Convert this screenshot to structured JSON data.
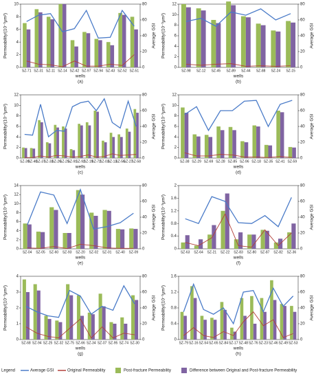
{
  "legend_title": "Legend",
  "chart_data": [
    {
      "type": "bar",
      "subtitle": "(a)",
      "x_label": "wells",
      "y_label": "Permeability/(10⁻³μm²)",
      "y2_label": "Average GSI",
      "categories": [
        "SZ-71",
        "SZ-31",
        "SZ-11",
        "SZ-14",
        "SZ-42",
        "SZ-97",
        "SZ-94",
        "SZ-43",
        "SZ-52",
        "SZ-51"
      ],
      "series": [
        {
          "name": "Average GSI",
          "type": "line",
          "axis": "y2",
          "color": "#4a7bc8",
          "values": [
            58,
            66,
            68,
            45,
            49,
            72,
            37,
            38,
            72,
            52
          ]
        },
        {
          "name": "Original Permeability",
          "type": "line",
          "color": "#b2403a",
          "values": [
            1,
            0.5,
            0.4,
            0.1,
            1,
            0.2,
            0.2,
            0.5,
            0.3,
            2
          ]
        },
        {
          "name": "Post-fracture Permeability",
          "type": "bar",
          "color": "#9bbb59",
          "values": [
            7,
            9.2,
            8,
            10,
            4.3,
            5.6,
            4.5,
            4,
            8.6,
            8
          ]
        },
        {
          "name": "Difference between Original and Post-fracture Permeability",
          "type": "bar",
          "color": "#8064a2",
          "values": [
            6,
            8.7,
            7.6,
            10,
            3.3,
            5.4,
            4.3,
            3.5,
            8.3,
            6
          ]
        }
      ],
      "ylim": [
        0,
        10
      ],
      "yticks": [
        0,
        2,
        4,
        6,
        8,
        10
      ],
      "y2lim": [
        0,
        80
      ],
      "y2ticks": [
        0,
        20,
        40,
        60,
        80
      ]
    },
    {
      "type": "bar",
      "subtitle": "(b)",
      "x_label": "wells",
      "y_label": "Permeability/(10⁻³μm²)",
      "y2_label": "Average GSI",
      "categories": [
        "SZ-98",
        "SZ-12",
        "SZ-45",
        "SZ-89",
        "SZ-44",
        "SZ-88",
        "SZ-24",
        "SZ-15"
      ],
      "series": [
        {
          "name": "Average GSI",
          "type": "line",
          "axis": "y2",
          "color": "#4a7bc8",
          "values": [
            58,
            62,
            52,
            70,
            66,
            74,
            60,
            68
          ]
        },
        {
          "name": "Original Permeability",
          "type": "line",
          "color": "#b2403a",
          "values": [
            0.6,
            0.4,
            0.6,
            0.7,
            0.2,
            0.3,
            0.2,
            0.3
          ]
        },
        {
          "name": "Post-fracture Permeability",
          "type": "bar",
          "color": "#9bbb59",
          "values": [
            12,
            11.2,
            9,
            12.5,
            9.7,
            8.3,
            7,
            8.8
          ]
        },
        {
          "name": "Difference between Original and Post-fracture Permeability",
          "type": "bar",
          "color": "#8064a2",
          "values": [
            11.4,
            10.8,
            8.4,
            11.8,
            9.5,
            8,
            6.8,
            8.5
          ]
        }
      ],
      "ylim": [
        0,
        12
      ],
      "yticks": [
        0,
        2,
        4,
        6,
        8,
        10,
        12
      ],
      "y2lim": [
        0,
        80
      ],
      "y2ticks": [
        0,
        20,
        40,
        60,
        80
      ]
    },
    {
      "type": "bar",
      "subtitle": "(c)",
      "x_label": "wells",
      "y_label": "Permeability/(10⁻³μm²)",
      "y2_label": "Average GSI",
      "categories": [
        "SZ-39",
        "SZ-40",
        "SZ-37",
        "SZ-33",
        "SZ-26",
        "SZ-25",
        "SZ-91",
        "SZ-92",
        "SZ-19",
        "SZ-72",
        "SZ-03",
        "SZ-13",
        "SZ-56",
        "SZ-27",
        "SZ-58"
      ],
      "series": [
        {
          "name": "Average GSI",
          "type": "line",
          "axis": "y2",
          "color": "#4a7bc8",
          "values": [
            30,
            29,
            68,
            27,
            35,
            34,
            65,
            70,
            72,
            60,
            75,
            45,
            38,
            72,
            40
          ]
        },
        {
          "name": "Original Permeability",
          "type": "line",
          "color": "#b2403a",
          "values": [
            0.1,
            0.1,
            0.4,
            0.2,
            0.5,
            0.4,
            0.2,
            0.3,
            0.6,
            0.2,
            0.3,
            0.8,
            0.5,
            0.6,
            0.7
          ]
        },
        {
          "name": "Post-fracture Permeability",
          "type": "bar",
          "color": "#9bbb59",
          "values": [
            2,
            1.9,
            7.2,
            3,
            6.3,
            6,
            1.7,
            6.5,
            6.8,
            9,
            3.3,
            4.8,
            4.5,
            5.6,
            9.3
          ]
        },
        {
          "name": "Difference between Original and Post-fracture Permeability",
          "type": "bar",
          "color": "#8064a2",
          "values": [
            1.9,
            1.8,
            6.8,
            2.8,
            5.8,
            5.6,
            1.5,
            6.2,
            6.2,
            8.8,
            3,
            4,
            4,
            5,
            8.6
          ]
        }
      ],
      "ylim": [
        0,
        12
      ],
      "yticks": [
        0,
        2,
        4,
        6,
        8,
        10,
        12
      ],
      "y2lim": [
        0,
        80
      ],
      "y2ticks": [
        0,
        20,
        40,
        60,
        80
      ]
    },
    {
      "type": "bar",
      "subtitle": "(d)",
      "x_label": "wells",
      "y_label": "Permeability/(10⁻³μm²)",
      "y2_label": "Average GSI",
      "categories": [
        "SZ-38",
        "SZ-29",
        "SZ-69",
        "SZ-28",
        "SZ-85",
        "SZ-96",
        "SZ-18",
        "SZ-35",
        "SZ-41",
        "SZ-59"
      ],
      "series": [
        {
          "name": "Average GSI",
          "type": "line",
          "axis": "y2",
          "color": "#4a7bc8",
          "values": [
            55,
            65,
            35,
            60,
            60,
            72,
            73,
            40,
            68,
            73
          ]
        },
        {
          "name": "Original Permeability",
          "type": "line",
          "color": "#b2403a",
          "values": [
            1,
            0.4,
            0.4,
            0.7,
            0.6,
            0.2,
            0.2,
            0.1,
            0.3,
            0.1
          ]
        },
        {
          "name": "Post-fracture Permeability",
          "type": "bar",
          "color": "#9bbb59",
          "values": [
            9.6,
            4.5,
            4.4,
            6,
            5.9,
            3.2,
            6.2,
            2.5,
            9,
            2.1
          ]
        },
        {
          "name": "Difference between Original and Post-fracture Permeability",
          "type": "bar",
          "color": "#8064a2",
          "values": [
            8.6,
            4.1,
            4,
            5.3,
            5.3,
            3,
            6,
            2.4,
            8.7,
            2
          ]
        }
      ],
      "ylim": [
        0,
        12
      ],
      "yticks": [
        0,
        2,
        4,
        6,
        8,
        10,
        12
      ],
      "y2lim": [
        0,
        80
      ],
      "y2ticks": [
        0,
        20,
        40,
        60,
        80
      ]
    },
    {
      "type": "bar",
      "subtitle": "(e)",
      "x_label": "wells",
      "y_label": "Permeability/(10⁻³μm²)",
      "y2_label": "Average GSI",
      "categories": [
        "SZ-04",
        "SZ-05",
        "SZ-60",
        "SZ-93",
        "SZ-20",
        "SZ-02",
        "SZ-01",
        "SZ-40",
        "SZ-09"
      ],
      "series": [
        {
          "name": "Average GSI",
          "type": "line",
          "axis": "y2",
          "color": "#4a7bc8",
          "values": [
            30,
            72,
            68,
            32,
            75,
            25,
            28,
            33,
            45
          ]
        },
        {
          "name": "Original Permeability",
          "type": "line",
          "color": "#b2403a",
          "values": [
            0.2,
            0.1,
            0.5,
            0.05,
            1,
            0.7,
            0.2,
            0.1,
            0.1
          ]
        },
        {
          "name": "Post-fracture Permeability",
          "type": "bar",
          "color": "#9bbb59",
          "values": [
            5.6,
            3.8,
            9.2,
            3.5,
            13,
            8,
            8.6,
            4.4,
            4.5
          ]
        },
        {
          "name": "Difference between Original and Post-fracture Permeability",
          "type": "bar",
          "color": "#8064a2",
          "values": [
            5.4,
            3.7,
            8.6,
            3.5,
            12,
            7.3,
            8.4,
            4.3,
            4.4
          ]
        }
      ],
      "ylim": [
        0,
        14
      ],
      "yticks": [
        0,
        2,
        4,
        6,
        8,
        10,
        12,
        14
      ],
      "y2lim": [
        0,
        80
      ],
      "y2ticks": [
        0,
        20,
        40,
        60,
        80
      ]
    },
    {
      "type": "bar",
      "subtitle": "(f)",
      "x_label": "wells",
      "y_label": "Permeability/(10⁻³μm²)",
      "y2_label": "Average GSI",
      "categories": [
        "SZ-63",
        "SZ-64",
        "SZ-21",
        "SZ-22",
        "SZ-83",
        "SZ-80",
        "SZ-87",
        "SZ-82",
        "SZ-36"
      ],
      "series": [
        {
          "name": "Average GSI",
          "type": "line",
          "axis": "y2",
          "color": "#4a7bc8",
          "values": [
            38,
            32,
            66,
            60,
            33,
            32,
            42,
            28,
            65
          ]
        },
        {
          "name": "Original Permeability",
          "type": "line",
          "color": "#b2403a",
          "values": [
            0.2,
            0.1,
            0.35,
            1.1,
            0.1,
            0.05,
            0.6,
            0.1,
            0.5
          ]
        },
        {
          "name": "Post-fracture Permeability",
          "type": "bar",
          "color": "#9bbb59",
          "values": [
            0.2,
            0.1,
            0.45,
            1.2,
            0.3,
            0.45,
            0.6,
            0.2,
            0.52
          ]
        },
        {
          "name": "Difference between Original and Post-fracture Permeability",
          "type": "bar",
          "color": "#8064a2",
          "values": [
            0.43,
            0.3,
            0.75,
            1.75,
            0.52,
            0.45,
            0.57,
            0.32,
            0.8
          ]
        }
      ],
      "ylim": [
        0,
        2
      ],
      "yticks": [
        0,
        0.4,
        0.8,
        1.2,
        1.6,
        2
      ],
      "y2lim": [
        0,
        80
      ],
      "y2ticks": [
        0,
        20,
        40,
        60,
        80
      ]
    },
    {
      "type": "bar",
      "subtitle": "(g)",
      "x_label": "wells",
      "y_label": "Permeability/(10⁻³μm²)",
      "y2_label": "Average GSI",
      "categories": [
        "SZ-68",
        "SZ-94",
        "SZ-25",
        "SZ-32",
        "SZ-75",
        "SZ-66",
        "SZ-34",
        "SZ-07",
        "SZ-95",
        "SZ-74",
        "SZ-30"
      ],
      "series": [
        {
          "name": "Average GSI",
          "type": "line",
          "axis": "y2",
          "color": "#4a7bc8",
          "values": [
            42,
            35,
            30,
            28,
            62,
            55,
            32,
            42,
            37,
            68,
            45
          ]
        },
        {
          "name": "Original Permeability",
          "type": "line",
          "color": "#b2403a",
          "values": [
            0.8,
            0.4,
            0.2,
            0.1,
            0.7,
            1.3,
            0.1,
            0.8,
            0.1,
            0.4,
            0.3
          ]
        },
        {
          "name": "Post-fracture Permeability",
          "type": "bar",
          "color": "#9bbb59",
          "values": [
            3.8,
            3.5,
            1.5,
            1.2,
            3.5,
            2.8,
            1.7,
            2.9,
            1.1,
            1.4,
            2.8
          ]
        },
        {
          "name": "Difference between Original and Post-fracture Permeability",
          "type": "bar",
          "color": "#8064a2",
          "values": [
            3,
            3.1,
            1.3,
            1.1,
            2.8,
            1.5,
            1.6,
            2.1,
            1,
            1,
            2.5
          ]
        }
      ],
      "ylim": [
        0,
        4
      ],
      "yticks": [
        0,
        1,
        2,
        3,
        4
      ],
      "y2lim": [
        0,
        80
      ],
      "y2ticks": [
        0,
        20,
        40,
        60,
        80
      ]
    },
    {
      "type": "bar",
      "subtitle": "(h)",
      "x_label": "wells",
      "y_label": "Permeability/(10⁻³μm²)",
      "y2_label": "Average GSI",
      "categories": [
        "SZ-79",
        "SZ-16",
        "SZ-54",
        "SZ-65",
        "SZ-84",
        "SZ-17",
        "SZ-48",
        "SZ-76",
        "SZ-23",
        "SZ-46",
        "SZ-49",
        "SZ-53"
      ],
      "series": [
        {
          "name": "Average GSI",
          "type": "line",
          "axis": "y2",
          "color": "#4a7bc8",
          "values": [
            35,
            70,
            38,
            32,
            40,
            20,
            60,
            62,
            35,
            65,
            42,
            55
          ]
        },
        {
          "name": "Original Permeability",
          "type": "line",
          "color": "#b2403a",
          "values": [
            0.1,
            0.3,
            0.1,
            0.05,
            0.2,
            0.1,
            0.45,
            0.7,
            0.35,
            0.5,
            0.05,
            0.15
          ]
        },
        {
          "name": "Post-fracture Permeability",
          "type": "bar",
          "color": "#9bbb59",
          "values": [
            0.7,
            1.35,
            0.6,
            0.55,
            0.95,
            0.3,
            1.05,
            1.1,
            1.05,
            1.5,
            0.9,
            0.85
          ]
        },
        {
          "name": "Difference between Original and Post-fracture Permeability",
          "type": "bar",
          "color": "#8064a2",
          "values": [
            0.6,
            1.05,
            0.5,
            0.5,
            0.75,
            0.2,
            0.6,
            0.4,
            0.7,
            1,
            0.85,
            0.7
          ]
        }
      ],
      "ylim": [
        0,
        1.6
      ],
      "yticks": [
        0,
        0.4,
        0.8,
        1.2,
        1.6
      ],
      "y2lim": [
        0,
        80
      ],
      "y2ticks": [
        0,
        20,
        40,
        60,
        80
      ]
    }
  ]
}
